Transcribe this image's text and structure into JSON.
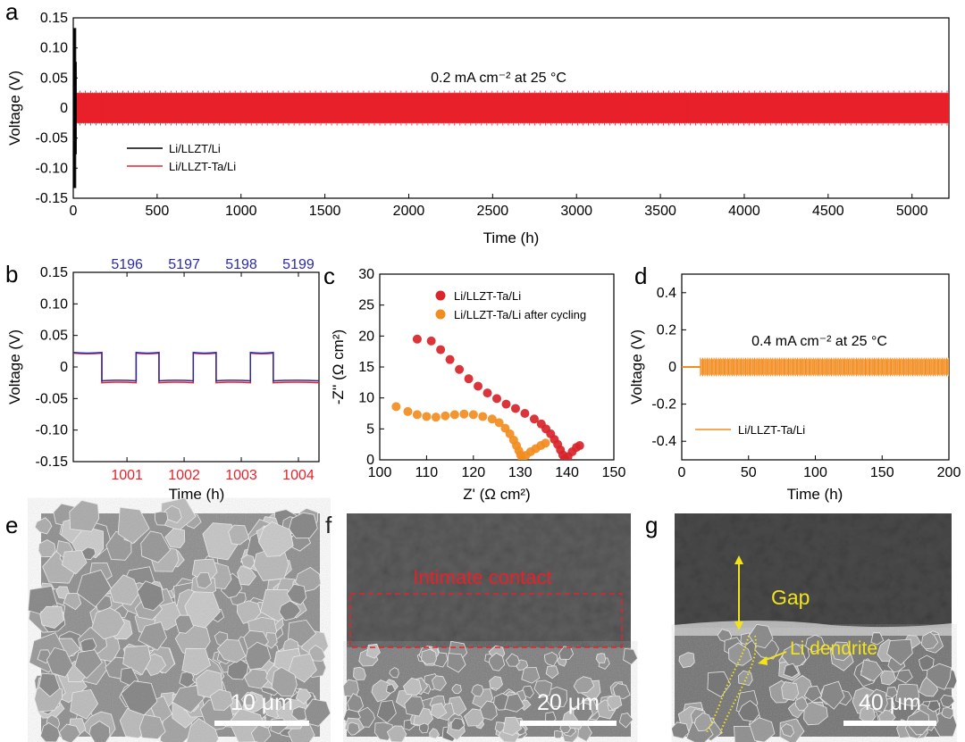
{
  "panels": {
    "a": {
      "label": "a",
      "chart_data": {
        "type": "line",
        "title": "",
        "annotation": "0.2 mA cm⁻² at 25 °C",
        "xlabel": "Time (h)",
        "ylabel": "Voltage (V)",
        "xlim": [
          0,
          5220
        ],
        "ylim": [
          -0.15,
          0.15
        ],
        "xticks": [
          "0",
          "500",
          "1000",
          "1500",
          "2000",
          "2500",
          "3000",
          "3500",
          "4000",
          "4500",
          "5000"
        ],
        "yticks": [
          "0.15",
          "0.10",
          "0.05",
          "0",
          "-0.05",
          "-0.10",
          "-0.15"
        ],
        "legend_position": "lower-left",
        "series": [
          {
            "name": "Li/LLZT/Li",
            "color": "#000000",
            "x_end_h": 20,
            "amplitude_V": 0.14
          },
          {
            "name": "Li/LLZT-Ta/Li",
            "color": "#e8202a",
            "x_end_h": 5220,
            "amplitude_V": 0.025
          }
        ]
      }
    },
    "b": {
      "label": "b",
      "chart_data": {
        "type": "line",
        "xlabel": "Time (h)",
        "ylabel": "Voltage (V)",
        "ylim": [
          -0.15,
          0.15
        ],
        "yticks": [
          "0.15",
          "0.10",
          "0.05",
          "0",
          "-0.05",
          "-0.10",
          "-0.15"
        ],
        "bottom_xticks": [
          "1001",
          "1002",
          "1003",
          "1004"
        ],
        "top_xticks": [
          "5196",
          "5197",
          "5198",
          "5199"
        ],
        "top_tick_color": "#2b2ba8",
        "bottom_tick_color": "#e8202a",
        "series": [
          {
            "color": "#e8202a",
            "plateau_V": [
              0.022,
              -0.025
            ]
          },
          {
            "color": "#2b2ba8",
            "plateau_V": [
              0.023,
              -0.022
            ]
          }
        ]
      }
    },
    "c": {
      "label": "c",
      "chart_data": {
        "type": "scatter",
        "xlabel": "Z' (Ω cm²)",
        "ylabel": "-Z'' (Ω cm²)",
        "xlim": [
          100,
          150
        ],
        "ylim": [
          0,
          30
        ],
        "xticks": [
          "100",
          "110",
          "120",
          "130",
          "140",
          "150"
        ],
        "yticks": [
          "30",
          "25",
          "20",
          "15",
          "10",
          "5",
          "0"
        ],
        "legend_position": "top-right",
        "series": [
          {
            "name": "Li/LLZT-Ta/Li",
            "color": "#d8242a",
            "x": [
              108,
              111,
              113,
              115,
              117,
              119,
              121,
              123,
              125,
              127,
              129,
              131,
              133,
              134.5,
              135.5,
              136.5,
              137.3,
              138,
              138.6,
              139.1,
              139.5,
              140.2,
              141.1,
              142,
              142.7
            ],
            "y": [
              19.5,
              19.2,
              17.8,
              16.2,
              14.6,
              13.1,
              11.9,
              10.8,
              9.9,
              9.0,
              8.3,
              7.5,
              6.6,
              5.8,
              5.0,
              4.2,
              3.3,
              2.5,
              1.6,
              0.8,
              0.2,
              0.5,
              1.3,
              2.0,
              2.3
            ]
          },
          {
            "name": "Li/LLZT-Ta/Li after cycling",
            "color": "#f28c1e",
            "x": [
              103.5,
              106,
              108,
              110,
              112,
              114,
              116,
              118,
              120,
              122,
              124,
              125.5,
              126.8,
              127.8,
              128.6,
              129.2,
              129.7,
              130.1,
              130.4,
              131.2,
              132.2,
              133.3,
              134.4,
              135.4
            ],
            "y": [
              8.6,
              7.8,
              7.3,
              7.0,
              6.9,
              7.1,
              7.3,
              7.4,
              7.3,
              7.0,
              6.6,
              6.0,
              5.1,
              4.2,
              3.2,
              2.3,
              1.5,
              0.8,
              0.2,
              0.7,
              1.3,
              1.8,
              2.3,
              2.7
            ]
          }
        ]
      }
    },
    "d": {
      "label": "d",
      "chart_data": {
        "type": "line",
        "annotation": "0.4 mA cm⁻² at 25 °C",
        "xlabel": "Time (h)",
        "ylabel": "Voltage (V)",
        "xlim": [
          0,
          200
        ],
        "ylim": [
          -0.5,
          0.5
        ],
        "xticks": [
          "0",
          "50",
          "100",
          "150",
          "200"
        ],
        "yticks": [
          "0.4",
          "0.2",
          "0",
          "-0.2",
          "-0.4"
        ],
        "legend_position": "lower-left",
        "series": [
          {
            "name": "Li/LLZT-Ta/Li",
            "color": "#f28c1e",
            "start_h": 14,
            "amplitude_V": 0.05
          }
        ]
      }
    },
    "e": {
      "label": "e",
      "scale_bar": "10 μm"
    },
    "f": {
      "label": "f",
      "scale_bar": "20 μm",
      "caption": "Intimate contact",
      "caption_color": "#e8202a"
    },
    "g": {
      "label": "g",
      "scale_bar": "40 μm",
      "gap_label": "Gap",
      "dendrite_label": "Li dendrite",
      "label_color": "#f2e31a"
    }
  }
}
